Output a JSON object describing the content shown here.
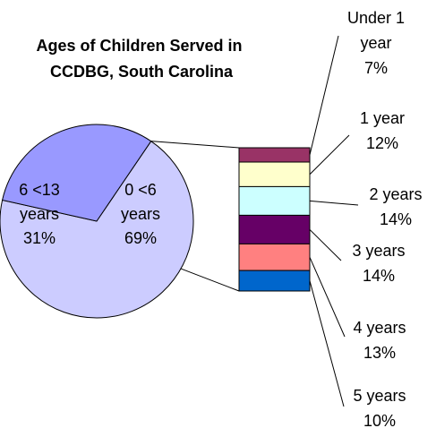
{
  "chart_data": {
    "type": "pie",
    "title_lines": [
      "Ages of Children Served in",
      "CCDBG, South Carolina"
    ],
    "pie": {
      "slices": [
        {
          "label_lines": [
            "0 <6",
            "years",
            "69%"
          ],
          "value": 69,
          "color": "#ccccff"
        },
        {
          "label_lines": [
            "6 <13",
            "years",
            "31%"
          ],
          "value": 31,
          "color": "#9999ff"
        }
      ]
    },
    "breakdown_of": "0 <6 years",
    "bar": {
      "segments": [
        {
          "label_lines": [
            "Under 1",
            "year",
            "7%"
          ],
          "value": 7,
          "color": "#993366"
        },
        {
          "label_lines": [
            "1 year",
            "12%"
          ],
          "value": 12,
          "color": "#ffffcc"
        },
        {
          "label_lines": [
            "2 years",
            "14%"
          ],
          "value": 14,
          "color": "#ccffff"
        },
        {
          "label_lines": [
            "3 years",
            "14%"
          ],
          "value": 14,
          "color": "#660066"
        },
        {
          "label_lines": [
            "4 years",
            "13%"
          ],
          "value": 13,
          "color": "#ff8080"
        },
        {
          "label_lines": [
            "5 years",
            "10%"
          ],
          "value": 10,
          "color": "#0066cc"
        }
      ]
    }
  }
}
